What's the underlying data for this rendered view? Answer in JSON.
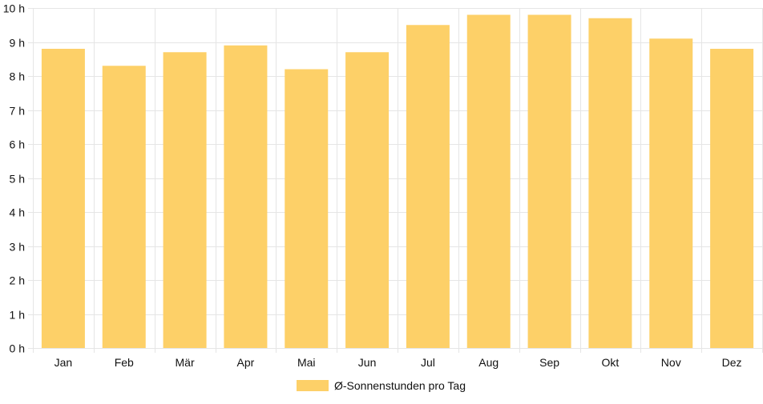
{
  "chart_data": {
    "type": "bar",
    "categories": [
      "Jan",
      "Feb",
      "Mär",
      "Apr",
      "Mai",
      "Jun",
      "Jul",
      "Aug",
      "Sep",
      "Okt",
      "Nov",
      "Dez"
    ],
    "series": [
      {
        "name": "Ø-Sonnenstunden pro Tag",
        "values": [
          8.8,
          8.3,
          8.7,
          8.9,
          8.2,
          8.7,
          9.5,
          9.8,
          9.8,
          9.7,
          9.1,
          8.8
        ]
      }
    ],
    "ylim": [
      0,
      10
    ],
    "y_ticks": [
      "0 h",
      "1 h",
      "2 h",
      "3 h",
      "4 h",
      "5 h",
      "6 h",
      "7 h",
      "8 h",
      "9 h",
      "10 h"
    ],
    "grid": true,
    "legend_position": "bottom",
    "bar_color": "#fdd068",
    "grid_color": "#e5e5e5"
  }
}
